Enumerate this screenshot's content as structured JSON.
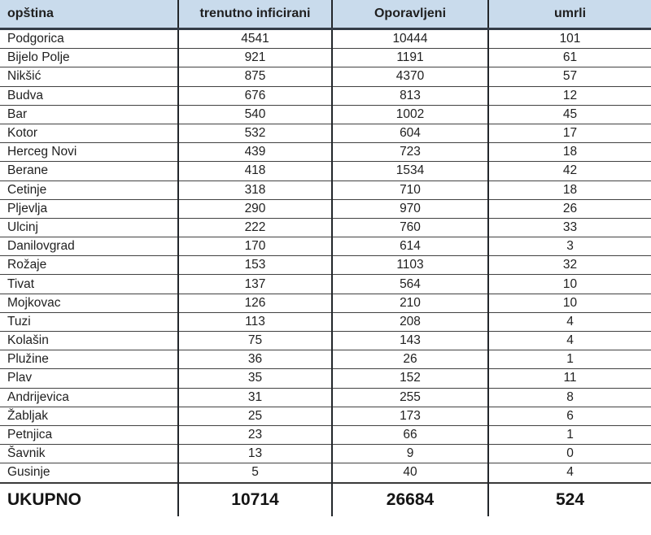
{
  "table": {
    "columns": {
      "municipality": "opština",
      "infected": "trenutno inficirani",
      "recovered": "Oporavljeni",
      "deaths": "umrli"
    },
    "rows": [
      {
        "name": "Podgorica",
        "infected": "4541",
        "recovered": "10444",
        "deaths": "101"
      },
      {
        "name": "Bijelo Polje",
        "infected": "921",
        "recovered": "1191",
        "deaths": "61"
      },
      {
        "name": "Nikšić",
        "infected": "875",
        "recovered": "4370",
        "deaths": "57"
      },
      {
        "name": "Budva",
        "infected": "676",
        "recovered": "813",
        "deaths": "12"
      },
      {
        "name": "Bar",
        "infected": "540",
        "recovered": "1002",
        "deaths": "45"
      },
      {
        "name": "Kotor",
        "infected": "532",
        "recovered": "604",
        "deaths": "17"
      },
      {
        "name": "Herceg Novi",
        "infected": "439",
        "recovered": "723",
        "deaths": "18"
      },
      {
        "name": "Berane",
        "infected": "418",
        "recovered": "1534",
        "deaths": "42"
      },
      {
        "name": "Cetinje",
        "infected": "318",
        "recovered": "710",
        "deaths": "18"
      },
      {
        "name": "Pljevlja",
        "infected": "290",
        "recovered": "970",
        "deaths": "26"
      },
      {
        "name": "Ulcinj",
        "infected": "222",
        "recovered": "760",
        "deaths": "33"
      },
      {
        "name": "Danilovgrad",
        "infected": "170",
        "recovered": "614",
        "deaths": "3"
      },
      {
        "name": "Rožaje",
        "infected": "153",
        "recovered": "1103",
        "deaths": "32"
      },
      {
        "name": "Tivat",
        "infected": "137",
        "recovered": "564",
        "deaths": "10"
      },
      {
        "name": "Mojkovac",
        "infected": "126",
        "recovered": "210",
        "deaths": "10"
      },
      {
        "name": "Tuzi",
        "infected": "113",
        "recovered": "208",
        "deaths": "4"
      },
      {
        "name": "Kolašin",
        "infected": "75",
        "recovered": "143",
        "deaths": "4"
      },
      {
        "name": "Plužine",
        "infected": "36",
        "recovered": "26",
        "deaths": "1"
      },
      {
        "name": "Plav",
        "infected": "35",
        "recovered": "152",
        "deaths": "11"
      },
      {
        "name": "Andrijevica",
        "infected": "31",
        "recovered": "255",
        "deaths": "8"
      },
      {
        "name": "Žabljak",
        "infected": "25",
        "recovered": "173",
        "deaths": "6"
      },
      {
        "name": "Petnjica",
        "infected": "23",
        "recovered": "66",
        "deaths": "1"
      },
      {
        "name": "Šavnik",
        "infected": "13",
        "recovered": "9",
        "deaths": "0"
      },
      {
        "name": "Gusinje",
        "infected": "5",
        "recovered": "40",
        "deaths": "4"
      }
    ],
    "total": {
      "label": "UKUPNO",
      "infected": "10714",
      "recovered": "26684",
      "deaths": "524"
    }
  },
  "colors": {
    "header_bg": "#c9dbec",
    "border": "#3a3a3a",
    "text": "#1f1f1f"
  }
}
